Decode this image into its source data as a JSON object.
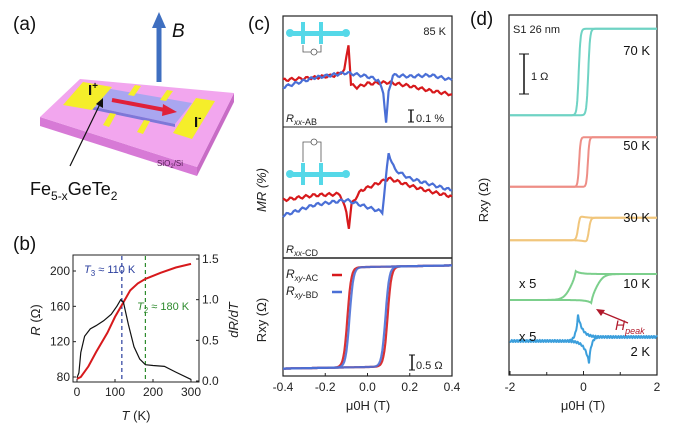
{
  "panels": {
    "a": {
      "label": "(a)",
      "field": "B",
      "i_plus": "I",
      "i_plus_sup": "+",
      "i_minus": "I",
      "i_minus_sup": "-",
      "substrate": "SiO",
      "substrate_sub": "2",
      "substrate_suffix": "/Si",
      "material": {
        "a": "Fe",
        "b": "5-x",
        "c": "GeTe",
        "d": "2"
      }
    },
    "b": {
      "label": "(b)"
    },
    "c": {
      "label": "(c)"
    },
    "d": {
      "label": "(d)"
    }
  },
  "colors": {
    "red": "#d7191c",
    "blue": "#4a6fd6",
    "black": "#111111",
    "t3_line": "#2b3f9e",
    "t2_line": "#2e8b2e",
    "substrate_top": "#f2a6ee",
    "substrate_side": "#d77ad6",
    "flake": "#a9a6f0",
    "contact": "#f5ee2a",
    "b_arrow": "#3f6fc0",
    "inset_cyan": "#55d8e8"
  },
  "chart_data": [
    {
      "id": "b",
      "type": "line",
      "xlabel": "T (K)",
      "ylabel_left": "R (Ω)",
      "ylabel_right": "dR/dT",
      "xlim": [
        0,
        310
      ],
      "ylim_left": [
        75,
        218
      ],
      "ylim_right": [
        0,
        1.57
      ],
      "xticks": [
        "0",
        "100",
        "200",
        "300"
      ],
      "yticks_left": [
        "80",
        "120",
        "160",
        "200"
      ],
      "yticks_right": [
        "0.0",
        "0.5",
        "1.0",
        "1.5"
      ],
      "series": [
        {
          "axis": "left",
          "color": "red",
          "points": [
            [
              0,
              78
            ],
            [
              10,
              80
            ],
            [
              30,
              92
            ],
            [
              50,
              108
            ],
            [
              80,
              130
            ],
            [
              100,
              148
            ],
            [
              120,
              163
            ],
            [
              140,
              178
            ],
            [
              160,
              186
            ],
            [
              180,
              191
            ],
            [
              220,
              198
            ],
            [
              260,
              204
            ],
            [
              300,
              208
            ]
          ]
        },
        {
          "axis": "right",
          "color": "black",
          "points": [
            [
              0,
              0.04
            ],
            [
              5,
              0.1
            ],
            [
              10,
              0.35
            ],
            [
              20,
              0.55
            ],
            [
              35,
              0.64
            ],
            [
              50,
              0.68
            ],
            [
              70,
              0.74
            ],
            [
              90,
              0.82
            ],
            [
              105,
              0.92
            ],
            [
              115,
              1.0
            ],
            [
              122,
              0.97
            ],
            [
              135,
              0.7
            ],
            [
              150,
              0.42
            ],
            [
              165,
              0.27
            ],
            [
              180,
              0.2
            ],
            [
              200,
              0.19
            ],
            [
              230,
              0.18
            ],
            [
              260,
              0.11
            ],
            [
              300,
              0.02
            ]
          ]
        }
      ],
      "annotations": [
        {
          "sym": "T",
          "sub": "3",
          "text": " ≈ 110 K",
          "x": 118,
          "color": "t3_line"
        },
        {
          "sym": "T",
          "sub": "2",
          "text": " ≈ 180 K",
          "x": 180,
          "color": "t2_line"
        }
      ]
    },
    {
      "id": "c",
      "type": "line",
      "xlabel": "μ0H (T)",
      "xlim": [
        -0.4,
        0.4
      ],
      "xticks": [
        "-0.4",
        "-0.2",
        "0.0",
        "0.2",
        "0.4"
      ],
      "ylabel_mr": "MR (%)",
      "ylabel_rxy": "Rxy (Ω)",
      "temperature": "85 K",
      "subplots": [
        {
          "name": "Rxx-AB",
          "label": {
            "main": "R",
            "sub": "xx",
            "suffix": "-AB"
          },
          "scalebar": "0.1 %",
          "series": [
            {
              "color": "red",
              "points": [
                [
                  -0.4,
                  0
                ],
                [
                  -0.25,
                  0.02
                ],
                [
                  -0.15,
                  0.04
                ],
                [
                  -0.11,
                  0.08
                ],
                [
                  -0.09,
                  0.3
                ],
                [
                  -0.078,
                  -0.04
                ],
                [
                  -0.05,
                  -0.06
                ],
                [
                  0,
                  -0.03
                ],
                [
                  0.1,
                  -0.02
                ],
                [
                  0.2,
                  -0.05
                ],
                [
                  0.3,
                  -0.09
                ],
                [
                  0.4,
                  -0.12
                ]
              ]
            },
            {
              "color": "blue",
              "points": [
                [
                  -0.4,
                  -0.06
                ],
                [
                  -0.25,
                  0.02
                ],
                [
                  -0.1,
                  0.06
                ],
                [
                  0,
                  0.03
                ],
                [
                  0.05,
                  0.0
                ],
                [
                  0.075,
                  -0.1
                ],
                [
                  0.088,
                  -0.36
                ],
                [
                  0.1,
                  -0.1
                ],
                [
                  0.12,
                  0.04
                ],
                [
                  0.2,
                  0.03
                ],
                [
                  0.3,
                  0.04
                ],
                [
                  0.4,
                  0.0
                ]
              ]
            }
          ]
        },
        {
          "name": "Rxx-CD",
          "label": {
            "main": "R",
            "sub": "xx",
            "suffix": "-CD"
          },
          "series": [
            {
              "color": "red",
              "points": [
                [
                  -0.4,
                  0
                ],
                [
                  -0.25,
                  0.04
                ],
                [
                  -0.13,
                  0.05
                ],
                [
                  -0.1,
                  -0.1
                ],
                [
                  -0.088,
                  -0.23
                ],
                [
                  -0.075,
                  -0.03
                ],
                [
                  -0.03,
                  0.08
                ],
                [
                  0.05,
                  0.14
                ],
                [
                  0.1,
                  0.18
                ],
                [
                  0.2,
                  0.12
                ],
                [
                  0.3,
                  0.07
                ],
                [
                  0.4,
                  0.03
                ]
              ]
            },
            {
              "color": "blue",
              "points": [
                [
                  -0.4,
                  -0.13
                ],
                [
                  -0.25,
                  -0.04
                ],
                [
                  -0.1,
                  0.0
                ],
                [
                  -0.05,
                  -0.03
                ],
                [
                  0.0,
                  -0.06
                ],
                [
                  0.07,
                  -0.1
                ],
                [
                  0.085,
                  0.15
                ],
                [
                  0.1,
                  0.39
                ],
                [
                  0.13,
                  0.25
                ],
                [
                  0.2,
                  0.18
                ],
                [
                  0.3,
                  0.13
                ],
                [
                  0.4,
                  0.08
                ]
              ]
            }
          ]
        },
        {
          "name": "Rxy",
          "scalebar": "0.5 Ω",
          "legend": [
            {
              "main": "R",
              "sub": "xy",
              "suffix": "-AC",
              "color": "red"
            },
            {
              "main": "R",
              "sub": "xy",
              "suffix": "-BD",
              "color": "blue"
            }
          ],
          "loops": [
            {
              "color": "red",
              "coercive_field_T": 0.095,
              "amplitude_ohm": 1.6
            },
            {
              "color": "blue",
              "coercive_field_T": 0.085,
              "amplitude_ohm": 1.6
            }
          ]
        }
      ]
    },
    {
      "id": "d",
      "type": "line",
      "sample": "S1 26 nm",
      "xlabel": "μ0H (T)",
      "ylabel": "Rxy (Ω)",
      "xlim": [
        -2,
        2
      ],
      "xticks": [
        "-2",
        "0",
        "2"
      ],
      "scalebar": "1 Ω",
      "annotation": {
        "main": "H",
        "sub": "peak"
      },
      "curves": [
        {
          "label": "70 K",
          "color": "#6fd3c4",
          "multiplier": "",
          "coercive_field_T": 0.13,
          "amplitude_ohm": 1.08,
          "peak_ohm": 0
        },
        {
          "label": "50 K",
          "color": "#ee8e86",
          "multiplier": "",
          "coercive_field_T": 0.12,
          "amplitude_ohm": 0.62,
          "peak_ohm": 0
        },
        {
          "label": "30 K",
          "color": "#f1c67c",
          "multiplier": "",
          "coercive_field_T": 0.15,
          "amplitude_ohm": 0.28,
          "peak_ohm": 0.05
        },
        {
          "label": "10 K",
          "color": "#7ccf8c",
          "multiplier": "x 5",
          "coercive_field_T": 0.35,
          "amplitude_ohm": 0.065,
          "peak_ohm": 0.04
        },
        {
          "label": "2 K",
          "color": "#3c9fdc",
          "multiplier": "x 5",
          "coercive_field_T": 0.25,
          "amplitude_ohm": 0.01,
          "peak_ohm": 0.11
        }
      ]
    }
  ]
}
